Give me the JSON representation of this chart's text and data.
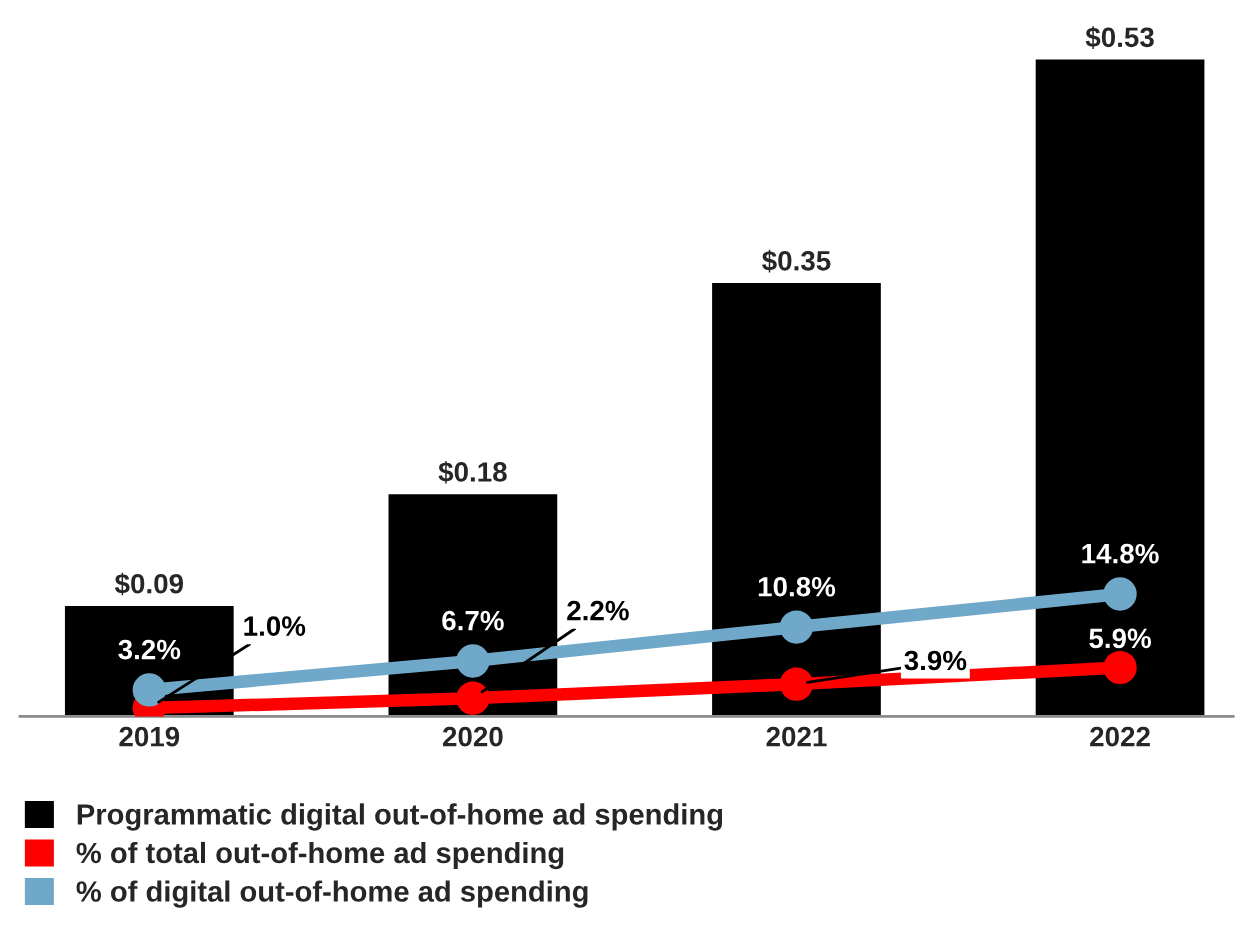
{
  "chart_data": {
    "type": "bar",
    "categories": [
      "2019",
      "2020",
      "2021",
      "2022"
    ],
    "series": [
      {
        "name": "Programmatic digital out-of-home ad spending",
        "color": "#000000",
        "values": [
          0.09,
          0.18,
          0.35,
          0.53
        ],
        "value_labels": [
          "$0.09",
          "$0.18",
          "$0.35",
          "$0.53"
        ]
      },
      {
        "name": "% of total out-of-home ad spending",
        "type": "line",
        "axis": "y2",
        "color": "#ff0000",
        "values": [
          1.0,
          2.2,
          3.9,
          5.9
        ],
        "value_labels": [
          "1.0%",
          "2.2%",
          "3.9%",
          "5.9%"
        ]
      },
      {
        "name": "% of digital out-of-home ad spending",
        "type": "line",
        "axis": "y2",
        "color": "#6fa8c8",
        "values": [
          3.2,
          6.7,
          10.8,
          14.8
        ],
        "value_labels": [
          "3.2%",
          "6.7%",
          "10.8%",
          "14.8%"
        ]
      }
    ],
    "tick_labels": "x",
    "marker": "circle",
    "legend": "bottom",
    "grid": false
  }
}
